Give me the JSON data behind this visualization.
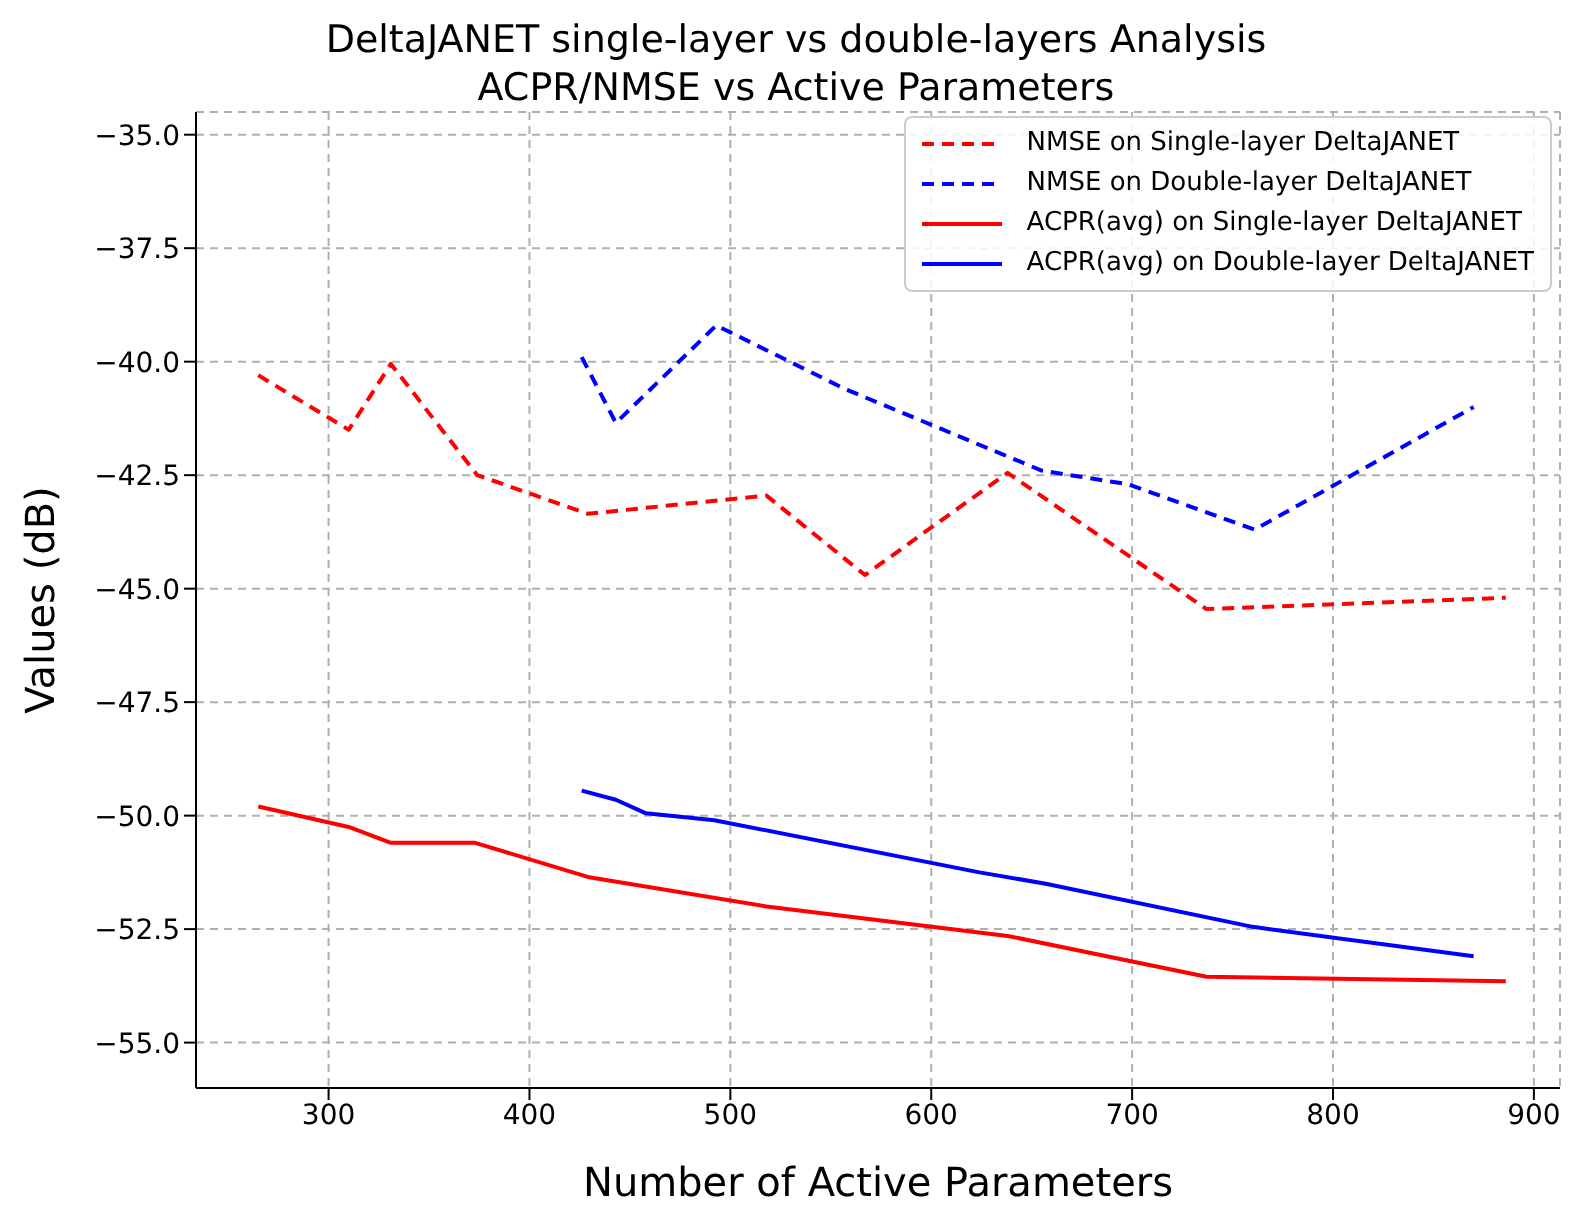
{
  "chart_data": {
    "type": "line",
    "title": "DeltaJANET single-layer vs double-layers Analysis",
    "subtitle": "ACPR/NMSE vs Active Parameters",
    "xlabel": "Number of Active Parameters",
    "ylabel": "Values (dB)",
    "xlim": [
      234,
      913
    ],
    "xticks": [
      300,
      400,
      500,
      600,
      700,
      800,
      900
    ],
    "ylim": [
      -56,
      -34.5
    ],
    "yticks": [
      {
        "value": -55,
        "label": "−55.0"
      },
      {
        "value": -52.5,
        "label": "−52.5"
      },
      {
        "value": -50,
        "label": "−50.0"
      },
      {
        "value": -47.5,
        "label": "−47.5"
      },
      {
        "value": -45,
        "label": "−45.0"
      },
      {
        "value": -42.5,
        "label": "−42.5"
      },
      {
        "value": -40,
        "label": "−40.0"
      },
      {
        "value": -37.5,
        "label": "−37.5"
      },
      {
        "value": -35,
        "label": "−35.0"
      }
    ],
    "grid": true,
    "legend": "top right",
    "marker": "none",
    "series": [
      {
        "name": "NMSE on Single-layer DeltaJANET",
        "color": "#ff0000",
        "line_style": "dashed",
        "x": [
          265,
          310,
          331,
          374,
          429,
          518,
          567,
          638,
          737,
          886
        ],
        "values": [
          -40.3,
          -41.5,
          -40.05,
          -42.5,
          -43.35,
          -42.95,
          -44.7,
          -42.45,
          -45.45,
          -45.2
        ]
      },
      {
        "name": "NMSE on Double-layer DeltaJANET",
        "color": "#0000ff",
        "line_style": "dashed",
        "x": [
          426,
          443,
          493,
          557,
          655,
          698,
          761,
          870
        ],
        "values": [
          -39.9,
          -41.35,
          -39.2,
          -40.6,
          -42.4,
          -42.7,
          -43.7,
          -41.0
        ]
      },
      {
        "name": "ACPR(avg) on Single-layer DeltaJANET",
        "color": "#ff0000",
        "line_style": "solid",
        "x": [
          265,
          310,
          331,
          373,
          429,
          518,
          638,
          737,
          886
        ],
        "values": [
          -49.8,
          -50.25,
          -50.6,
          -50.6,
          -51.35,
          -52.0,
          -52.65,
          -53.55,
          -53.65
        ]
      },
      {
        "name": "ACPR(avg) on Double-layer DeltaJANET",
        "color": "#0000ff",
        "line_style": "solid",
        "x": [
          426,
          443,
          458,
          492,
          624,
          657,
          760,
          870
        ],
        "values": [
          -49.45,
          -49.65,
          -49.95,
          -50.1,
          -51.25,
          -51.5,
          -52.45,
          -53.1
        ]
      }
    ]
  }
}
